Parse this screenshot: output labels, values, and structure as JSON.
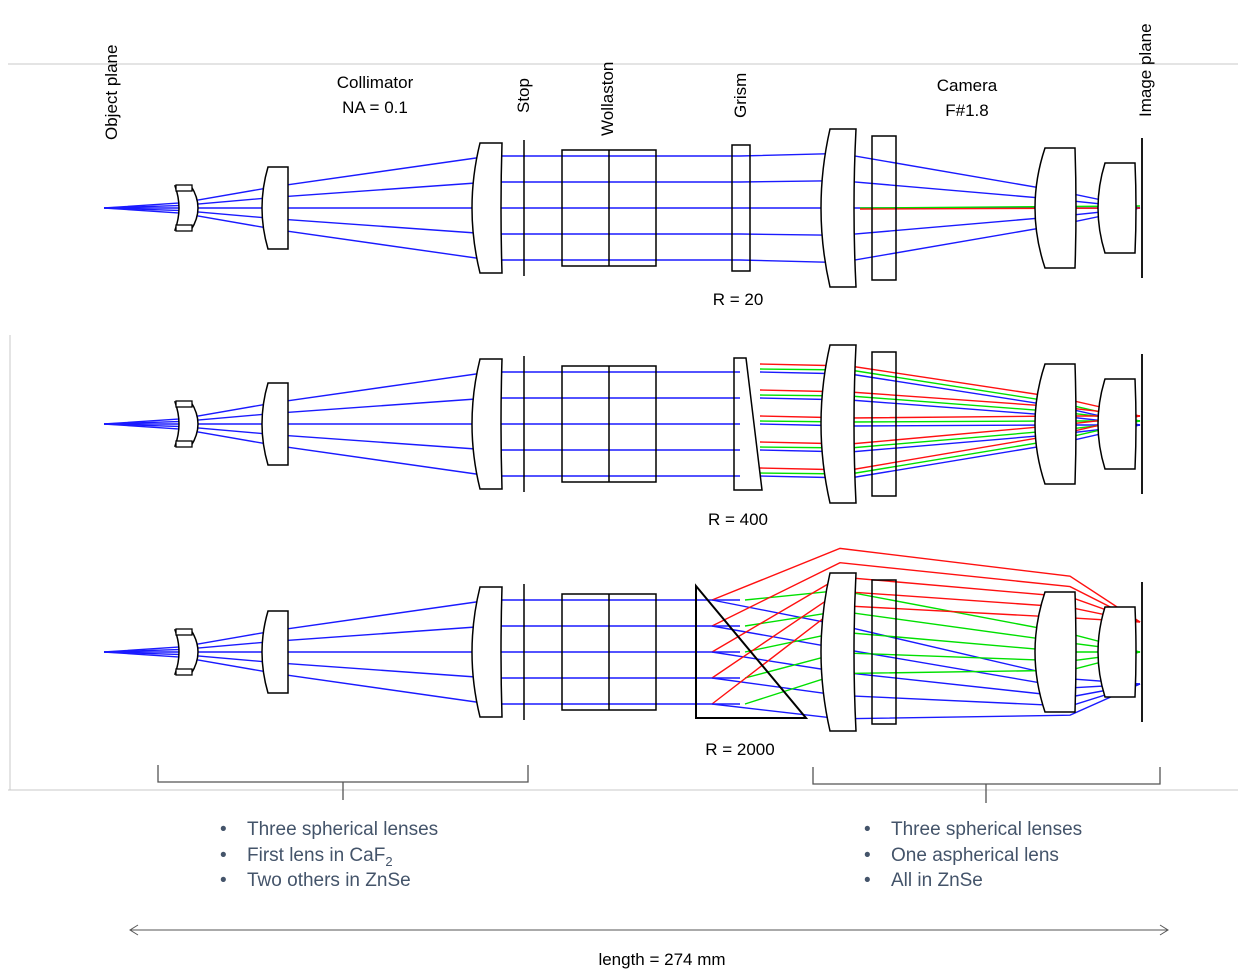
{
  "labels": {
    "object_plane": "Object plane",
    "collimator": "Collimator",
    "collimator_na": "NA = 0.1",
    "stop": "Stop",
    "wollaston": "Wollaston",
    "grism": "Grism",
    "camera": "Camera",
    "camera_f": "F#1.8",
    "image_plane": "Image plane"
  },
  "panels": [
    {
      "resolution": "R = 20"
    },
    {
      "resolution": "R = 400"
    },
    {
      "resolution": "R = 2000"
    }
  ],
  "collimator_notes": {
    "item1": "Three spherical lenses",
    "item2_prefix": "First lens in CaF",
    "item2_sub": "2",
    "item3": "Two others in ZnSe"
  },
  "camera_notes": {
    "item1": "Three spherical lenses",
    "item2": "One aspherical lens",
    "item3": "All in ZnSe"
  },
  "bullet": "•",
  "length_label": "length = 274 mm",
  "ray_colors": {
    "blue": "#1a1aff",
    "green": "#00e000",
    "red": "#ff1010"
  }
}
